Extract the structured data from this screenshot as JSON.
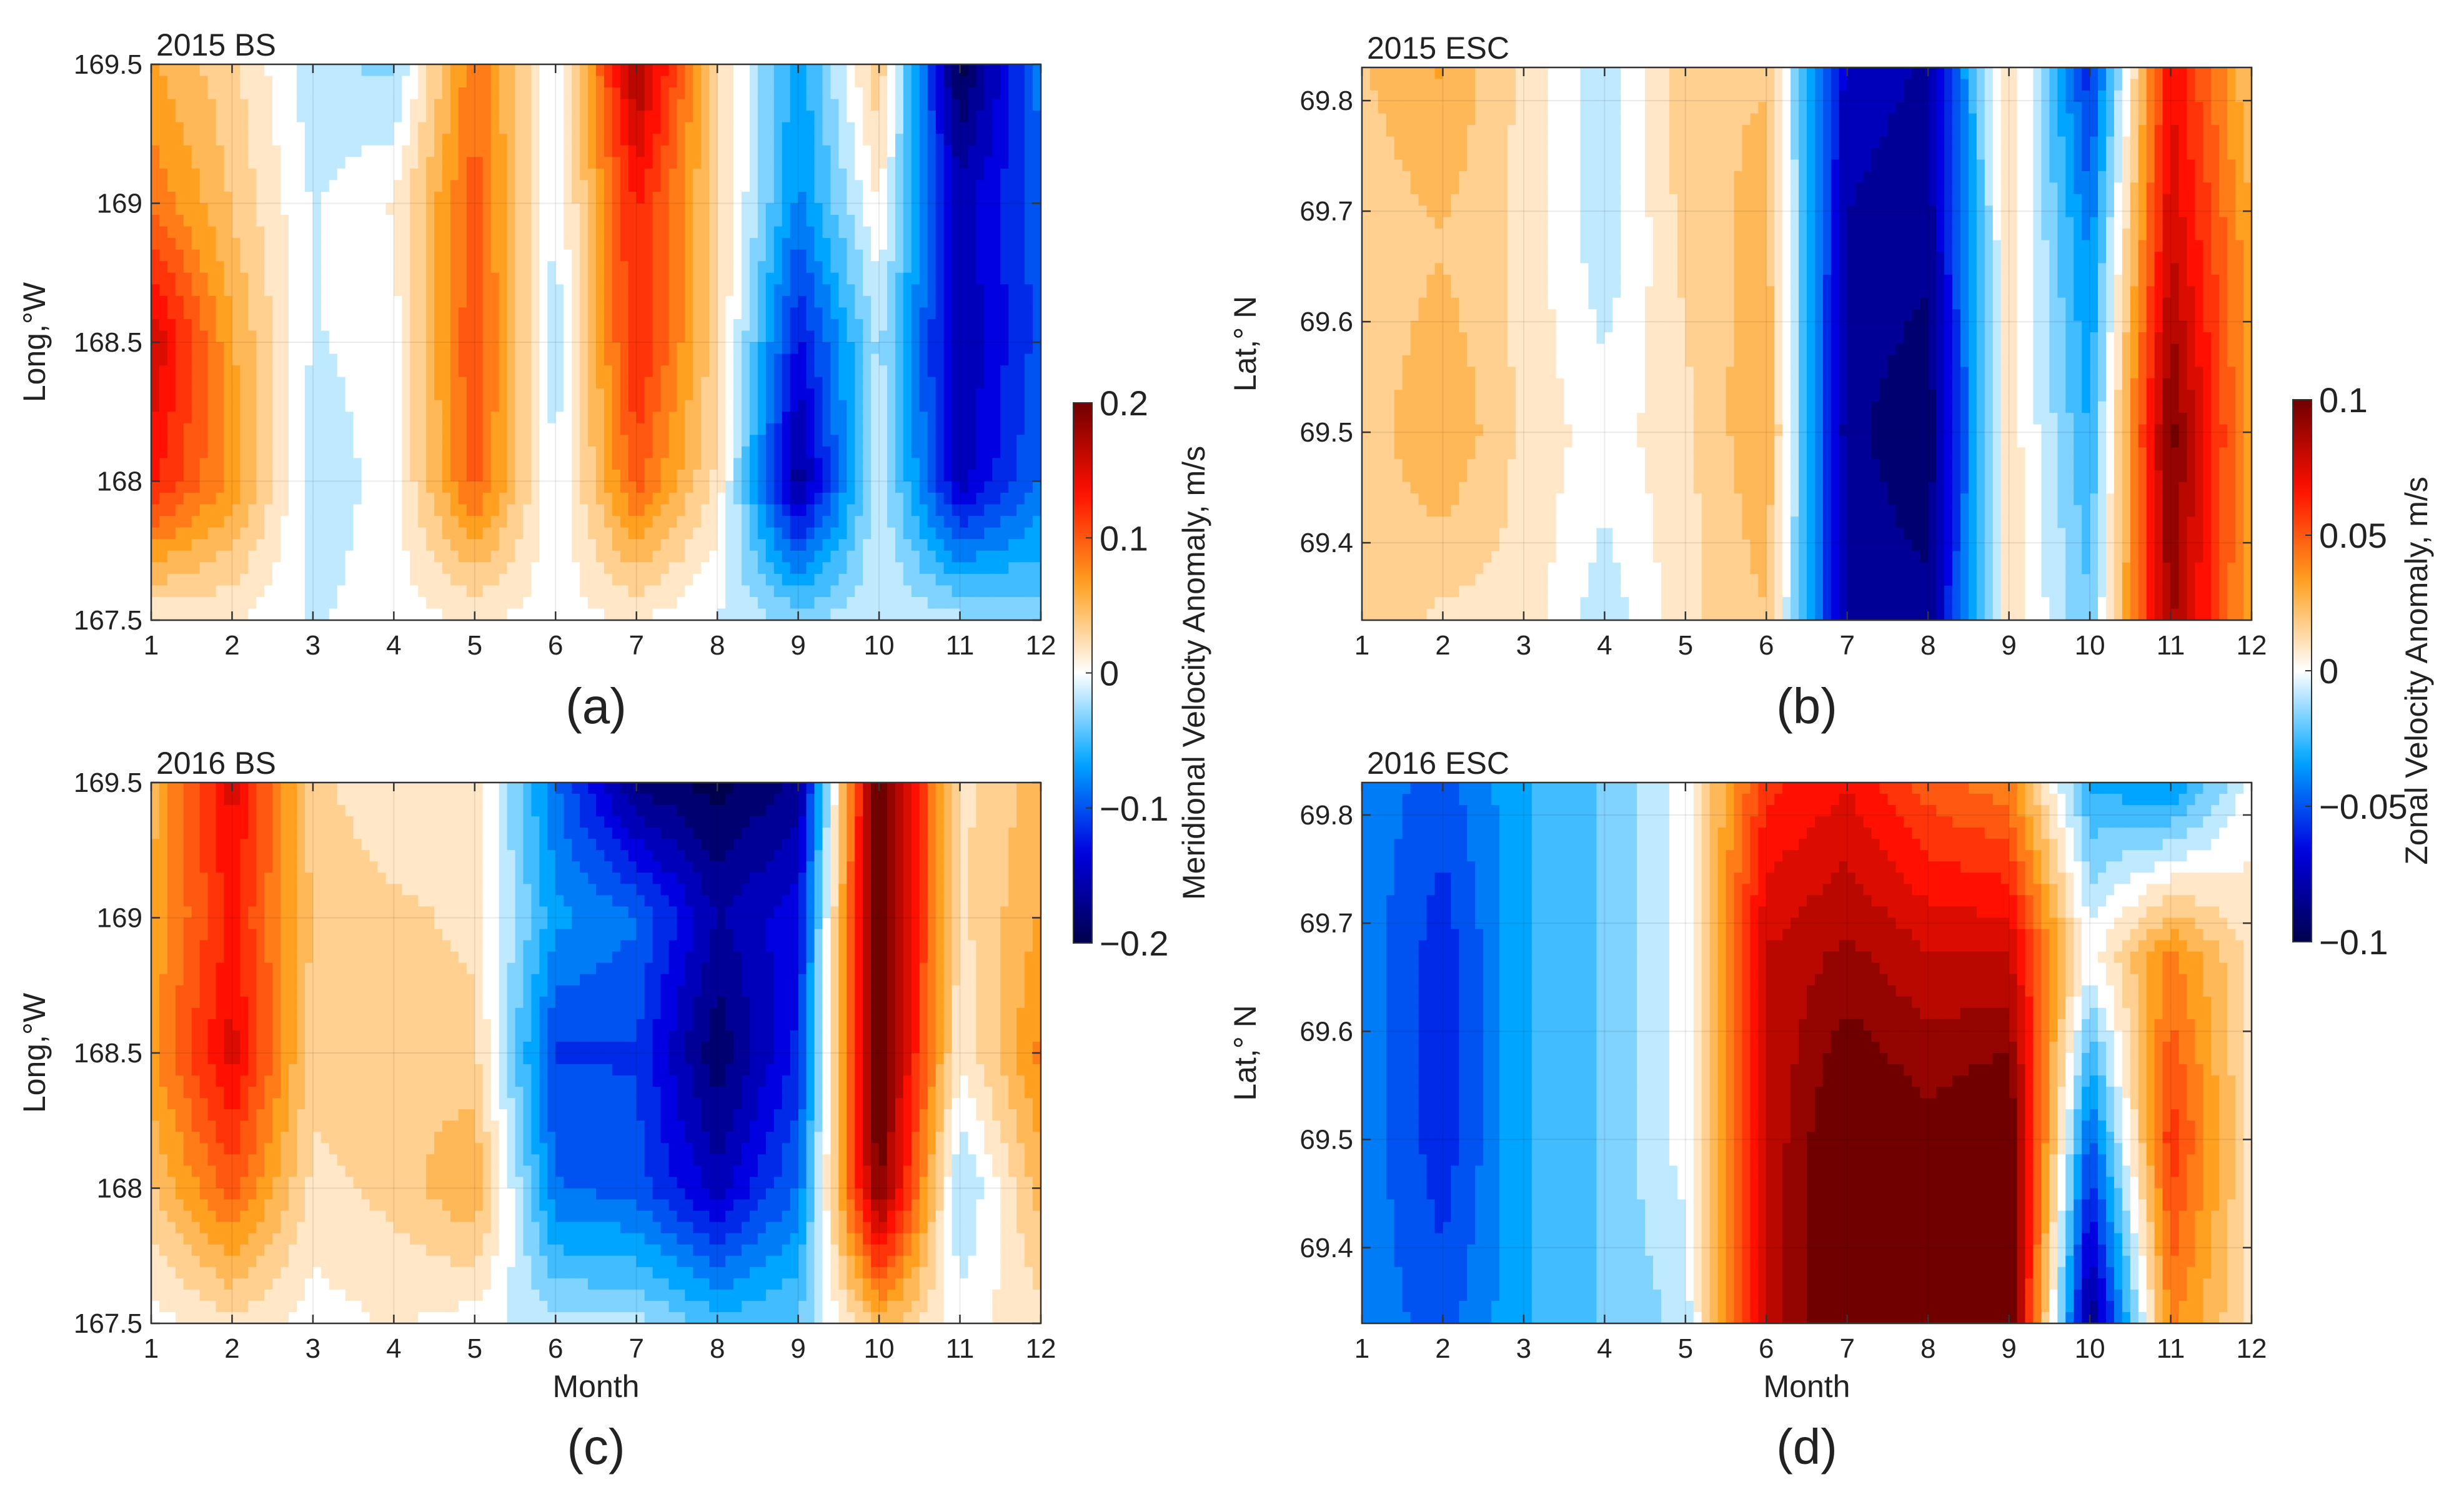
{
  "chart_data": [
    {
      "type": "heatmap",
      "id": "a",
      "title": "2015 BS",
      "panel_label": "(a)",
      "xlabel": "",
      "ylabel": "Long,°W",
      "xlim": [
        1,
        12
      ],
      "ylim": [
        167.5,
        169.5
      ],
      "x_ticks": [
        "1",
        "2",
        "3",
        "4",
        "5",
        "6",
        "7",
        "8",
        "9",
        "10",
        "11",
        "12"
      ],
      "y_ticks": [
        "167.5",
        "168",
        "168.5",
        "169",
        "169.5"
      ],
      "y_tick_values": [
        167.5,
        168,
        168.5,
        169,
        169.5
      ],
      "colorbar": "meridional",
      "x": [
        1,
        2,
        3,
        4,
        5,
        6,
        7,
        8,
        9,
        10,
        11,
        12
      ],
      "y": [
        167.5,
        168.0,
        168.5,
        169.0,
        169.5
      ],
      "z": [
        [
          0.01,
          0.01,
          -0.01,
          0.0,
          0.01,
          0.0,
          0.01,
          -0.01,
          -0.03,
          -0.01,
          -0.02,
          -0.03
        ],
        [
          0.13,
          0.07,
          -0.02,
          0.0,
          0.1,
          -0.01,
          0.1,
          0.02,
          -0.17,
          -0.01,
          -0.15,
          -0.09
        ],
        [
          0.16,
          0.06,
          -0.01,
          0.0,
          0.11,
          -0.02,
          0.13,
          0.03,
          -0.13,
          -0.02,
          -0.16,
          -0.1
        ],
        [
          0.09,
          0.04,
          -0.01,
          0.01,
          0.1,
          -0.01,
          0.13,
          0.03,
          -0.08,
          0.01,
          -0.15,
          -0.1
        ],
        [
          0.06,
          0.03,
          -0.02,
          -0.03,
          0.09,
          -0.01,
          0.18,
          0.03,
          -0.07,
          0.04,
          -0.2,
          -0.08
        ]
      ]
    },
    {
      "type": "heatmap",
      "id": "b",
      "title": "2015 ESC",
      "panel_label": "(b)",
      "xlabel": "",
      "ylabel": "Lat,° N",
      "xlim": [
        1,
        12
      ],
      "ylim": [
        69.33,
        69.83
      ],
      "x_ticks": [
        "1",
        "2",
        "3",
        "4",
        "5",
        "6",
        "7",
        "8",
        "9",
        "10",
        "11",
        "12"
      ],
      "y_ticks": [
        "69.4",
        "69.5",
        "69.6",
        "69.7",
        "69.8"
      ],
      "y_tick_values": [
        69.4,
        69.5,
        69.6,
        69.7,
        69.8
      ],
      "colorbar": "zonal",
      "x": [
        1,
        2,
        3,
        4,
        5,
        6,
        7,
        8,
        9,
        10,
        11,
        12
      ],
      "y": [
        69.33,
        69.5,
        69.67,
        69.83
      ],
      "z": [
        [
          0.02,
          0.01,
          0.01,
          -0.01,
          0.01,
          0.02,
          -0.08,
          -0.085,
          0.01,
          -0.02,
          0.09,
          0.03
        ],
        [
          0.015,
          0.03,
          0.01,
          0.0,
          0.01,
          0.03,
          -0.085,
          -0.095,
          0.01,
          -0.03,
          0.1,
          0.03
        ],
        [
          0.015,
          0.02,
          0.01,
          -0.01,
          0.015,
          0.025,
          -0.08,
          -0.085,
          0.01,
          -0.04,
          0.08,
          0.03
        ],
        [
          0.02,
          0.03,
          0.01,
          -0.01,
          0.02,
          0.02,
          -0.075,
          -0.08,
          0.015,
          -0.06,
          0.07,
          0.02
        ]
      ]
    },
    {
      "type": "heatmap",
      "id": "c",
      "title": "2016 BS",
      "panel_label": "(c)",
      "xlabel": "Month",
      "ylabel": "Long,°W",
      "xlim": [
        1,
        12
      ],
      "ylim": [
        167.5,
        169.5
      ],
      "x_ticks": [
        "1",
        "2",
        "3",
        "4",
        "5",
        "6",
        "7",
        "8",
        "9",
        "10",
        "11",
        "12"
      ],
      "y_ticks": [
        "167.5",
        "168",
        "168.5",
        "169",
        "169.5"
      ],
      "y_tick_values": [
        167.5,
        168,
        168.5,
        169,
        169.5
      ],
      "colorbar": "meridional",
      "x": [
        1,
        2,
        3,
        4,
        5,
        6,
        7,
        8,
        9,
        10,
        11,
        12
      ],
      "y": [
        167.5,
        168.0,
        168.5,
        169.0,
        169.5
      ],
      "z": [
        [
          0.0,
          0.02,
          0.0,
          0.01,
          0.0,
          -0.02,
          -0.02,
          -0.05,
          -0.04,
          0.05,
          0.0,
          0.02
        ],
        [
          0.04,
          0.1,
          0.02,
          0.03,
          0.06,
          -0.09,
          -0.1,
          -0.15,
          -0.09,
          0.2,
          -0.03,
          0.05
        ],
        [
          0.07,
          0.15,
          0.03,
          0.04,
          0.03,
          -0.11,
          -0.11,
          -0.19,
          -0.12,
          0.22,
          0.01,
          0.08
        ],
        [
          0.06,
          0.13,
          0.04,
          0.03,
          0.02,
          -0.07,
          -0.09,
          -0.16,
          -0.13,
          0.22,
          0.02,
          0.06
        ],
        [
          0.05,
          0.15,
          0.03,
          0.01,
          0.02,
          -0.09,
          -0.18,
          -0.2,
          -0.17,
          0.22,
          0.02,
          0.05
        ]
      ]
    },
    {
      "type": "heatmap",
      "id": "d",
      "title": "2016 ESC",
      "panel_label": "(d)",
      "xlabel": "Month",
      "ylabel": "Lat,° N",
      "xlim": [
        1,
        12
      ],
      "ylim": [
        69.33,
        69.83
      ],
      "x_ticks": [
        "1",
        "2",
        "3",
        "4",
        "5",
        "6",
        "7",
        "8",
        "9",
        "10",
        "11",
        "12"
      ],
      "y_ticks": [
        "69.4",
        "69.5",
        "69.6",
        "69.7",
        "69.8"
      ],
      "y_tick_values": [
        69.4,
        69.5,
        69.6,
        69.7,
        69.8
      ],
      "colorbar": "zonal",
      "x": [
        1,
        2,
        3,
        4,
        5,
        6,
        7,
        8,
        9,
        10,
        11,
        12
      ],
      "y": [
        69.33,
        69.5,
        69.67,
        69.83
      ],
      "z": [
        [
          -0.04,
          -0.05,
          -0.03,
          -0.02,
          -0.01,
          0.08,
          0.11,
          0.1,
          0.11,
          -0.09,
          0.04,
          0.01
        ],
        [
          -0.04,
          -0.06,
          -0.03,
          -0.02,
          0.0,
          0.08,
          0.11,
          0.1,
          0.11,
          -0.05,
          0.06,
          0.01
        ],
        [
          -0.04,
          -0.06,
          -0.03,
          -0.02,
          0.0,
          0.08,
          0.09,
          0.08,
          0.08,
          0.0,
          0.04,
          0.01
        ],
        [
          -0.04,
          -0.05,
          -0.03,
          -0.02,
          0.0,
          0.06,
          0.07,
          0.05,
          0.04,
          -0.03,
          -0.04,
          0.0
        ]
      ]
    }
  ],
  "colorbars": {
    "meridional": {
      "label": "Meridional Velocity Anomaly,  m/s",
      "range": [
        -0.2,
        0.2
      ],
      "ticks": [
        "0.2",
        "0.1",
        "0",
        "−0.1",
        "−0.2"
      ],
      "tick_values": [
        0.2,
        0.1,
        0,
        -0.1,
        -0.2
      ]
    },
    "zonal": {
      "label": "Zonal Velocity Anomaly,  m/s",
      "range": [
        -0.1,
        0.1
      ],
      "ticks": [
        "0.1",
        "0.05",
        "0",
        "−0.05",
        "−0.1"
      ],
      "tick_values": [
        0.1,
        0.05,
        0,
        -0.05,
        -0.1
      ]
    }
  },
  "colormap": [
    "#00004c",
    "#0000e0",
    "#00a5ff",
    "#ffffff",
    "#ffa020",
    "#ff1000",
    "#700000"
  ]
}
